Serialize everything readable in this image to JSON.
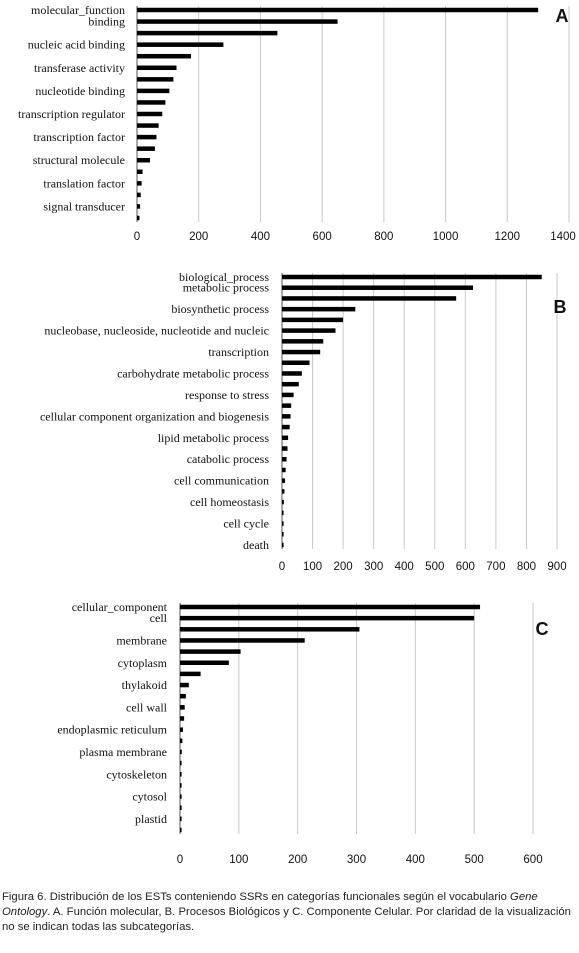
{
  "chart_data": [
    {
      "type": "bar",
      "orientation": "horizontal",
      "panel_letter": "A",
      "categories": [
        "molecular_function",
        "binding",
        "",
        "nucleic acid binding",
        "",
        "transferase activity",
        "",
        "nucleotide binding",
        "",
        "transcription regulator",
        "",
        "transcription factor",
        "",
        "structural molecule",
        "",
        "translation factor",
        "",
        "signal transducer",
        ""
      ],
      "values": [
        1300,
        650,
        455,
        280,
        175,
        128,
        118,
        105,
        92,
        82,
        70,
        63,
        58,
        42,
        18,
        15,
        12,
        10,
        8
      ],
      "x_ticks": [
        0,
        200,
        400,
        600,
        800,
        1000,
        1200,
        1400
      ],
      "xlim": [
        0,
        1400
      ],
      "grid": true
    },
    {
      "type": "bar",
      "orientation": "horizontal",
      "panel_letter": "B",
      "categories": [
        "biological_process",
        "metabolic process",
        "",
        "biosynthetic process",
        "",
        "nucleobase, nucleoside, nucleotide and nucleic",
        "",
        "transcription",
        "",
        "carbohydrate metabolic process",
        "",
        "response to stress",
        "",
        "cellular component organization and biogenesis",
        "",
        "lipid metabolic process",
        "",
        "catabolic process",
        "",
        "cell communication",
        "",
        "cell homeostasis",
        "",
        "cell cycle",
        "",
        "death"
      ],
      "values": [
        850,
        625,
        570,
        240,
        200,
        175,
        135,
        125,
        90,
        65,
        55,
        38,
        30,
        28,
        25,
        20,
        18,
        15,
        12,
        10,
        8,
        6,
        5,
        3,
        2,
        1
      ],
      "x_ticks": [
        0,
        100,
        200,
        300,
        400,
        500,
        600,
        700,
        800,
        900
      ],
      "xlim": [
        0,
        900
      ],
      "grid": true
    },
    {
      "type": "bar",
      "orientation": "horizontal",
      "panel_letter": "C",
      "categories": [
        "cellular_component",
        "cell",
        "",
        "membrane",
        "",
        "cytoplasm",
        "",
        "thylakoid",
        "",
        "cell wall",
        "",
        "endoplasmic reticulum",
        "",
        "plasma membrane",
        "",
        "cytoskeleton",
        "",
        "cytosol",
        "",
        "plastid",
        ""
      ],
      "values": [
        510,
        500,
        305,
        212,
        103,
        83,
        35,
        15,
        10,
        8,
        7,
        5,
        4,
        3,
        2,
        2,
        1,
        1,
        1,
        1,
        1
      ],
      "x_ticks": [
        0,
        100,
        200,
        300,
        400,
        500,
        600
      ],
      "xlim": [
        0,
        600
      ],
      "grid": true
    }
  ],
  "caption": {
    "lead": "Figura 6. Distribución de los ESTs conteniendo SSRs en categorías funcionales según el vocabulario ",
    "italic": "Gene Ontology",
    "rest": ". A. Función molecular, B. Procesos Biológicos y C. Componente Celular. Por claridad de la visualización no se indican todas las subcategorías."
  }
}
